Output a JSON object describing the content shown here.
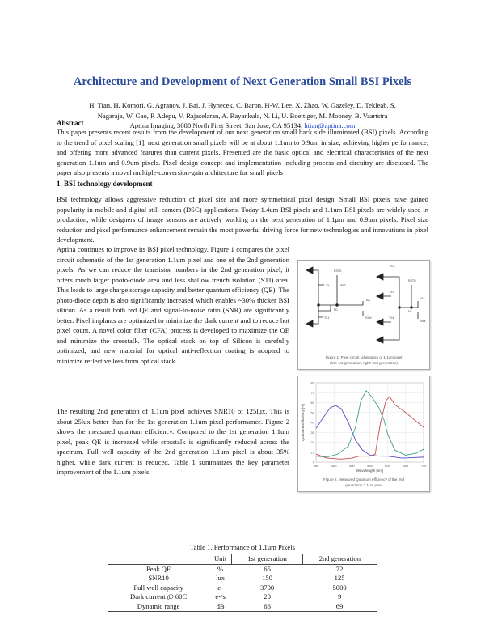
{
  "title": "Architecture and Development of Next Generation Small BSI Pixels",
  "authors_line1": "H. Tian, H. Komori, G. Agranov, J. Bai, J. Hynecek, C. Baron, H-W. Lee, X. Zhao, W. Gazeley, D. Tekleab, S.",
  "authors_line2": "Nagaraja, W. Gao, P. Adepu, V. Rajaselaran, A. Rayankula, N. Li, U. Boettiger, M. Mooney, B. Vaartstra",
  "affiliation": "Aptina Imaging, 3080 North First Street, San Jose, CA 95134, ",
  "email": "htian@aptina.com",
  "abstract_heading": "Abstract",
  "abstract": "This paper presents recent results from the development of our next generation small back side illuminated (BSI) pixels. According to the trend of pixel scaling [1], next generation small pixels will be at about 1.1um to 0.9um in size, achieving higher performance, and offering more advanced features than current pixels. Presented are the basic optical and electrical characteristics of the next generation 1.1um and 0.9um pixels. Pixel design concept and implementation including process and circuitry are discussed. The paper also presents a novel multiple-conversion-gain architecture for small pixels",
  "section1": "1.   BSI technology development",
  "para1": "BSI technology allows aggressive reduction of pixel size and more symmetrical pixel design. Small BSI pixels have gained popularity in mobile and digital still camera (DSC) applications. Today 1.4um BSI pixels and 1.1um BSI pixels are widely used in production, while designers of image sensors are actively working on the next generation of 1.1μm and 0.9um pixels. Pixel size reduction and pixel performance enhancement remain the most powerful driving force for new technologies and innovations in pixel development.",
  "para2": "Aptina continues to improve its BSI pixel technology. Figure 1 compares the pixel circuit schematic of the 1st generation 1.1um pixel and one of the 2nd generation pixels. As we can reduce the transistor numbers in the 2nd generation pixel, it offers much larger photo-diode area and less shallow trench isolation (STI) area. This leads to large charge storage capacity and better quantum efficiency (QE). The photo-diode depth is also significantly increased which enables ~30% thicker BSI silicon. As a result both red QE and signal-to-noise ratio (SNR) are significantly better. Pixel implants are optimized to minimize the dark current and to reduce hot pixel count. A novel color filter (CFA) process is developed to maximize the QE and minimize the crosstalk. The optical stack on top of Silicon is carefully optimized, and new material for optical anti-reflection coating is adopted to minimize reflective loss from optical stack.",
  "para3": "The resulting 2nd generation of 1.1um pixel achieves SNR10 of 125lux. This is about 25lux better than for the 1st generation 1.1um pixel performance. Figure 2 shows the measured quantum efficiency. Compared to the 1st generation 1.1um pixel, peak QE is increased while crosstalk is significantly reduced across the spectrum. Full well capacity of the 2nd generation 1.1um pixel is about 35% higher, while dark current is reduced. Table 1 summarizes the key parameter improvement of the 1.1um pixels.",
  "figure1": {
    "caption1": "Figure 1. Pixel circuit schematics of 1.1um pixel",
    "caption2": "(left: 1st generation, right: 2nd generation)",
    "labels": {
      "rstd": "RSTD",
      "tx1": "TX1",
      "tx2": "TX2",
      "tx3": "TX3",
      "tx4": "TX4",
      "rst": "RST",
      "aa": "AA",
      "row": "ROW",
      "rout": "Rout",
      "vaa": "VAA",
      "fd": "FD",
      "n2": "N2",
      "tg": "TX"
    }
  },
  "chart_data": {
    "type": "line",
    "title": "",
    "xlabel": "Wavelength [nm]",
    "ylabel": "Quantum Efficiency [%]",
    "xlim": [
      400,
      700
    ],
    "ylim": [
      0,
      80
    ],
    "grid": true,
    "x_ticks": [
      400,
      450,
      500,
      550,
      600,
      650,
      700
    ],
    "y_ticks": [
      0,
      10,
      20,
      30,
      40,
      50,
      60,
      70,
      80
    ],
    "caption1": "Figure 2. Measured Quantum efficiency of the 2nd",
    "caption2": "generation 1.1um pixel",
    "series": [
      {
        "color": "#5050c0",
        "x": [
          400,
          420,
          440,
          455,
          470,
          490,
          510,
          530,
          550,
          580,
          600,
          640,
          700
        ],
        "y": [
          34,
          45,
          55,
          57,
          54,
          40,
          22,
          12,
          7,
          6,
          6,
          4,
          5
        ]
      },
      {
        "color": "#40a080",
        "x": [
          400,
          430,
          460,
          490,
          510,
          525,
          540,
          555,
          575,
          590,
          600,
          620,
          650,
          680,
          700
        ],
        "y": [
          6,
          5,
          8,
          16,
          35,
          62,
          72,
          66,
          55,
          42,
          28,
          12,
          7,
          9,
          13
        ]
      },
      {
        "color": "#c05050",
        "x": [
          400,
          430,
          470,
          500,
          520,
          550,
          565,
          580,
          595,
          605,
          620,
          650,
          670,
          700
        ],
        "y": [
          8,
          4,
          3,
          4,
          6,
          6,
          8,
          40,
          62,
          66,
          58,
          50,
          44,
          35
        ]
      }
    ]
  },
  "table": {
    "caption": "Table 1. Performance of 1.1um Pixels",
    "headers": [
      "",
      "Unit",
      "1st generation",
      "2nd generation"
    ],
    "rows": [
      [
        "Peak QE",
        "%",
        "65",
        "72"
      ],
      [
        "SNR10",
        "lux",
        "150",
        "125"
      ],
      [
        "Full well capacity",
        "e-",
        "3700",
        "5000"
      ],
      [
        "Dark current @ 60C",
        "e-/s",
        "20",
        "9"
      ],
      [
        "Dynamic range",
        "dB",
        "66",
        "69"
      ]
    ]
  }
}
